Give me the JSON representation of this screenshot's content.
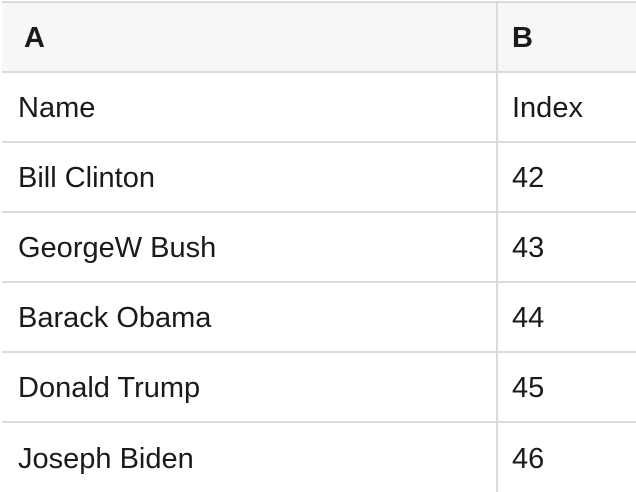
{
  "colors": {
    "header_bg": "#f7f7f7",
    "border": "#dbdbdb",
    "text": "#1a1a1a",
    "row_bg": "#ffffff"
  },
  "table": {
    "column_headers": [
      "A",
      "B"
    ],
    "rows": [
      [
        "Name",
        "Index"
      ],
      [
        "Bill Clinton",
        "42"
      ],
      [
        "GeorgeW Bush",
        "43"
      ],
      [
        "Barack Obama",
        "44"
      ],
      [
        "Donald Trump",
        "45"
      ],
      [
        "Joseph Biden",
        "46"
      ]
    ]
  }
}
